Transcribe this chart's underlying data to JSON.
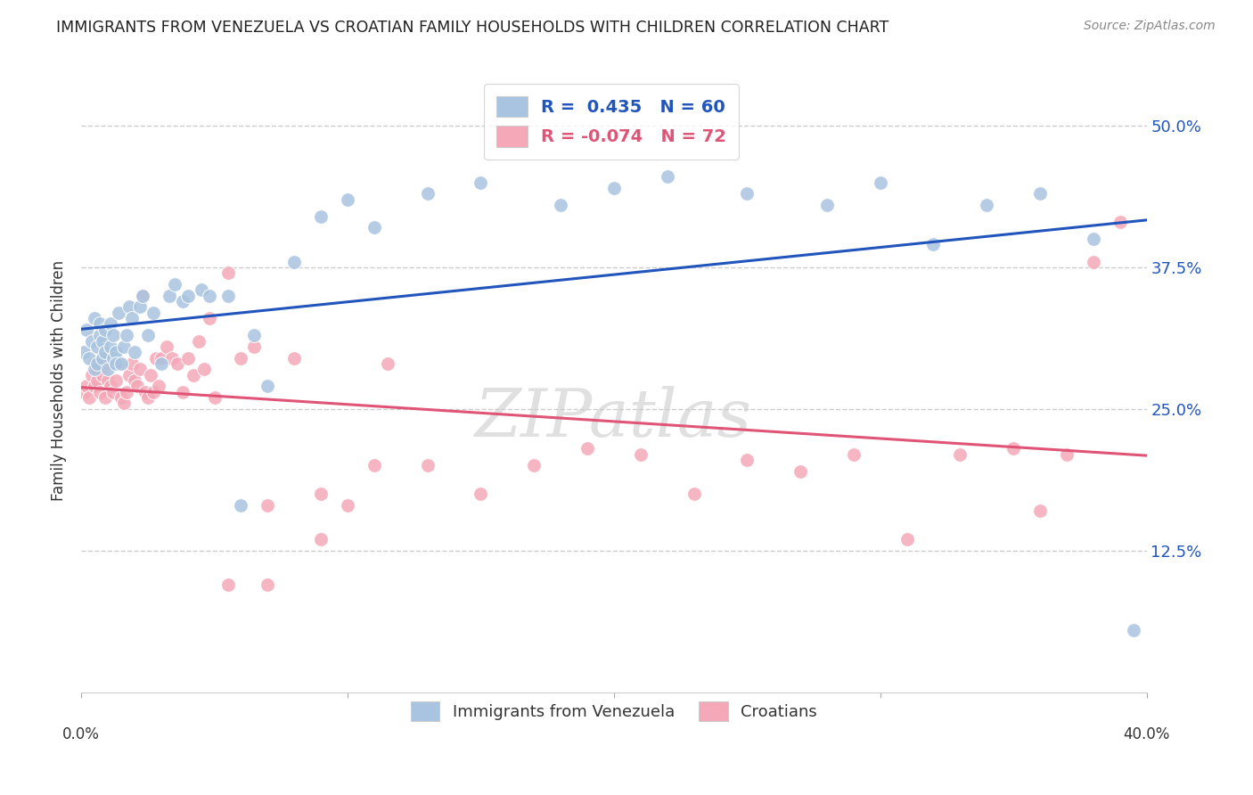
{
  "title": "IMMIGRANTS FROM VENEZUELA VS CROATIAN FAMILY HOUSEHOLDS WITH CHILDREN CORRELATION CHART",
  "source": "Source: ZipAtlas.com",
  "ylabel": "Family Households with Children",
  "yticks": [
    "12.5%",
    "25.0%",
    "37.5%",
    "50.0%"
  ],
  "ytick_vals": [
    0.125,
    0.25,
    0.375,
    0.5
  ],
  "xlim": [
    0.0,
    0.4
  ],
  "ylim": [
    0.0,
    0.55
  ],
  "legend1_r": "0.435",
  "legend1_n": "60",
  "legend2_r": "-0.074",
  "legend2_n": "72",
  "blue_color": "#A8C4E0",
  "pink_color": "#F4A8B8",
  "line_blue": "#2255BB",
  "line_pink": "#E05577",
  "venezuela_x": [
    0.001,
    0.002,
    0.003,
    0.004,
    0.005,
    0.005,
    0.006,
    0.006,
    0.007,
    0.007,
    0.008,
    0.008,
    0.009,
    0.009,
    0.01,
    0.011,
    0.011,
    0.012,
    0.012,
    0.013,
    0.013,
    0.014,
    0.015,
    0.016,
    0.017,
    0.018,
    0.019,
    0.02,
    0.022,
    0.023,
    0.025,
    0.027,
    0.03,
    0.033,
    0.035,
    0.038,
    0.04,
    0.045,
    0.048,
    0.055,
    0.06,
    0.065,
    0.07,
    0.08,
    0.09,
    0.1,
    0.11,
    0.13,
    0.15,
    0.18,
    0.2,
    0.22,
    0.25,
    0.28,
    0.3,
    0.32,
    0.34,
    0.36,
    0.38,
    0.395
  ],
  "venezuela_y": [
    0.3,
    0.32,
    0.295,
    0.31,
    0.285,
    0.33,
    0.29,
    0.305,
    0.315,
    0.325,
    0.295,
    0.31,
    0.3,
    0.32,
    0.285,
    0.305,
    0.325,
    0.295,
    0.315,
    0.3,
    0.29,
    0.335,
    0.29,
    0.305,
    0.315,
    0.34,
    0.33,
    0.3,
    0.34,
    0.35,
    0.315,
    0.335,
    0.29,
    0.35,
    0.36,
    0.345,
    0.35,
    0.355,
    0.35,
    0.35,
    0.165,
    0.315,
    0.27,
    0.38,
    0.42,
    0.435,
    0.41,
    0.44,
    0.45,
    0.43,
    0.445,
    0.455,
    0.44,
    0.43,
    0.45,
    0.395,
    0.43,
    0.44,
    0.4,
    0.055
  ],
  "croatia_x": [
    0.001,
    0.002,
    0.003,
    0.004,
    0.005,
    0.005,
    0.006,
    0.006,
    0.007,
    0.008,
    0.008,
    0.009,
    0.01,
    0.01,
    0.011,
    0.012,
    0.013,
    0.014,
    0.015,
    0.016,
    0.017,
    0.018,
    0.019,
    0.02,
    0.021,
    0.022,
    0.023,
    0.024,
    0.025,
    0.026,
    0.027,
    0.028,
    0.029,
    0.03,
    0.032,
    0.034,
    0.036,
    0.038,
    0.04,
    0.042,
    0.044,
    0.046,
    0.048,
    0.05,
    0.055,
    0.06,
    0.065,
    0.07,
    0.08,
    0.09,
    0.1,
    0.115,
    0.13,
    0.15,
    0.17,
    0.19,
    0.21,
    0.23,
    0.25,
    0.27,
    0.29,
    0.31,
    0.33,
    0.35,
    0.36,
    0.37,
    0.38,
    0.39,
    0.055,
    0.07,
    0.09,
    0.11
  ],
  "croatia_y": [
    0.265,
    0.27,
    0.26,
    0.28,
    0.27,
    0.29,
    0.275,
    0.285,
    0.265,
    0.28,
    0.295,
    0.26,
    0.275,
    0.29,
    0.27,
    0.265,
    0.275,
    0.29,
    0.26,
    0.255,
    0.265,
    0.28,
    0.29,
    0.275,
    0.27,
    0.285,
    0.35,
    0.265,
    0.26,
    0.28,
    0.265,
    0.295,
    0.27,
    0.295,
    0.305,
    0.295,
    0.29,
    0.265,
    0.295,
    0.28,
    0.31,
    0.285,
    0.33,
    0.26,
    0.37,
    0.295,
    0.305,
    0.165,
    0.295,
    0.135,
    0.165,
    0.29,
    0.2,
    0.175,
    0.2,
    0.215,
    0.21,
    0.175,
    0.205,
    0.195,
    0.21,
    0.135,
    0.21,
    0.215,
    0.16,
    0.21,
    0.38,
    0.415,
    0.095,
    0.095,
    0.175,
    0.2
  ]
}
